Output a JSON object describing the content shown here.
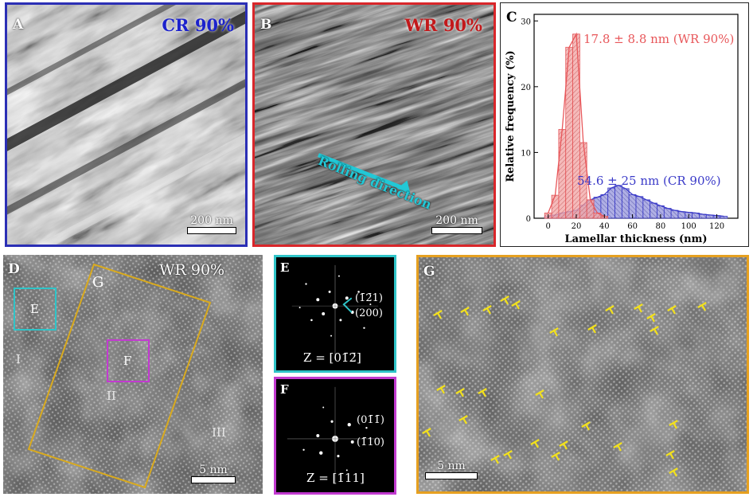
{
  "panels": {
    "A": {
      "label": "A",
      "tag": "CR 90%",
      "tag_color": "#1c22cc",
      "frame_color": "#2b2fb5",
      "scale": "200 nm"
    },
    "B": {
      "label": "B",
      "tag": "WR 90%",
      "tag_color": "#c2191b",
      "frame_color": "#d9262a",
      "scale": "200 nm",
      "annotation": "Rolling direction",
      "arrow_color": "#22c8d6"
    },
    "C": {
      "label": "C"
    },
    "D": {
      "label": "D",
      "tag": "WR 90%",
      "scale": "5 nm",
      "region_box": "G",
      "box_E": "E",
      "box_F": "F",
      "zone_I": "I",
      "zone_II": "II",
      "zone_III": "III",
      "box_G_color": "#d9aa1e",
      "box_E_color": "#2fc4c8",
      "box_F_color": "#c23ad0"
    },
    "E": {
      "label": "E",
      "spot1": "(1̄2̄1)",
      "spot2": "(200)",
      "zone_axis": "Z = [01̄2̄]",
      "frame_color": "#2fc4c8"
    },
    "F": {
      "label": "F",
      "spot1": "(01̄1̄)",
      "spot2": "(1̄10)",
      "zone_axis": "Z = [1̄11]",
      "frame_color": "#c23ad0"
    },
    "G": {
      "label": "G",
      "scale": "5 nm",
      "frame_color": "#e6a020",
      "dislocation_color": "#f3e11c"
    }
  },
  "chart_data": {
    "type": "bar",
    "xlabel": "Lamellar thickness (nm)",
    "ylabel": "Relative frequency (%)",
    "xlim": [
      -10,
      135
    ],
    "ylim": [
      0,
      31
    ],
    "xticks": [
      0,
      20,
      40,
      60,
      80,
      100,
      120
    ],
    "yticks": [
      0,
      10,
      20,
      30
    ],
    "bin_width": 5,
    "series": [
      {
        "name": "WR 90%",
        "annotation": "17.8 ± 8.8 nm (WR 90%)",
        "color": "#e8575a",
        "fill": "#f2a9a9",
        "bins": [
          0,
          5,
          10,
          15,
          20,
          25,
          30,
          35,
          40
        ],
        "values": [
          0.8,
          3.5,
          13.5,
          26.0,
          28.0,
          11.5,
          2.8,
          0.8,
          0.3
        ]
      },
      {
        "name": "CR 90%",
        "annotation": "54.6 ± 25 nm (CR 90%)",
        "color": "#3a3ac8",
        "fill": "#9b9bdd",
        "bins": [
          0,
          5,
          10,
          15,
          20,
          25,
          30,
          35,
          40,
          45,
          50,
          55,
          60,
          65,
          70,
          75,
          80,
          85,
          90,
          95,
          100,
          105,
          110,
          115,
          120,
          125
        ],
        "values": [
          0.3,
          0.5,
          0.8,
          1.0,
          1.2,
          2.0,
          2.8,
          3.2,
          3.6,
          4.6,
          5.0,
          4.5,
          3.6,
          3.3,
          2.8,
          2.3,
          1.9,
          1.5,
          1.2,
          1.0,
          0.9,
          0.8,
          0.6,
          0.5,
          0.4,
          0.3
        ]
      }
    ]
  }
}
